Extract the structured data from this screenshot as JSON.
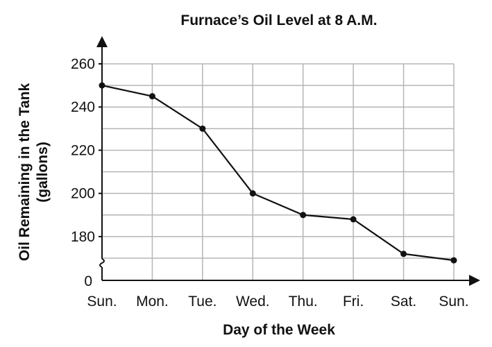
{
  "chart_data": {
    "type": "line",
    "title": "Furnace’s Oil Level at 8 A.M.",
    "xlabel": "Day of the Week",
    "ylabel_lines": [
      "Oil Remaining in the Tank",
      "(gallons)"
    ],
    "categories": [
      "Sun.",
      "Mon.",
      "Tue.",
      "Wed.",
      "Thu.",
      "Fri.",
      "Sat.",
      "Sun."
    ],
    "values": [
      250,
      245,
      230,
      200,
      190,
      188,
      172,
      169
    ],
    "y_ticks": [
      180,
      200,
      220,
      240,
      260
    ],
    "y_zero_label": "0",
    "ylim": [
      170,
      260
    ],
    "axis_break": true,
    "grid": true,
    "legend": "none"
  }
}
